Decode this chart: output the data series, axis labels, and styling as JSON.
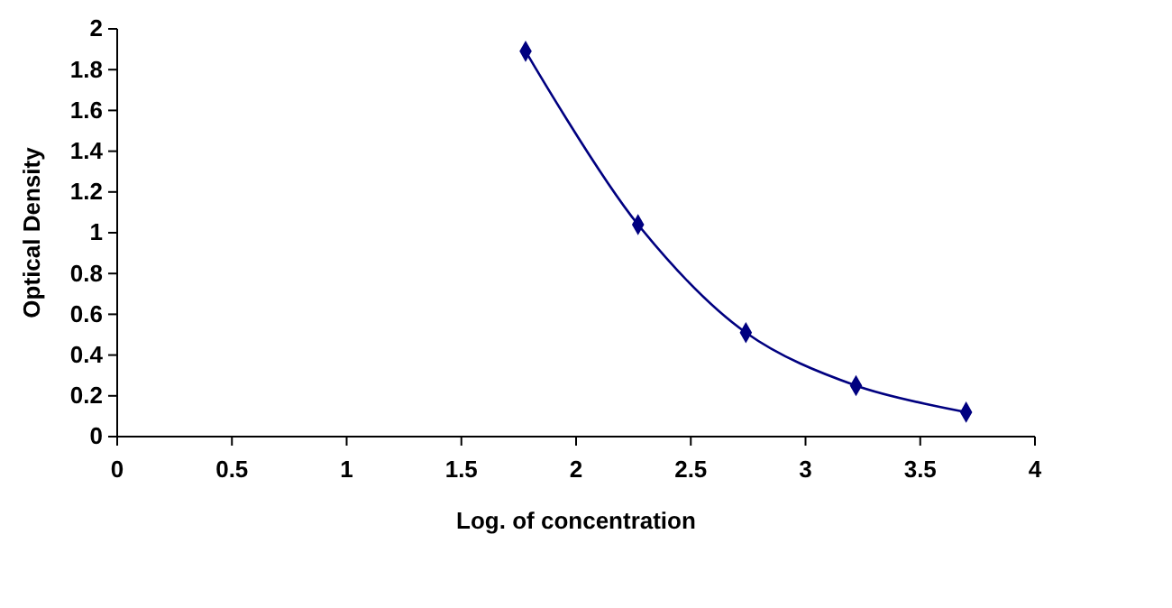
{
  "chart_data": {
    "type": "line",
    "xlabel": "Log. of concentration",
    "ylabel": "Optical Density",
    "x": [
      1.78,
      2.27,
      2.74,
      3.22,
      3.7
    ],
    "series": [
      {
        "color": "#000080",
        "values": [
          1.89,
          1.04,
          0.51,
          0.25,
          0.12
        ]
      }
    ],
    "xlim": [
      0,
      4
    ],
    "xticks": [
      0,
      0.5,
      1,
      1.5,
      2,
      2.5,
      3,
      3.5,
      4
    ],
    "ylim": [
      0,
      2
    ],
    "yticks": [
      0,
      0.2,
      0.4,
      0.6,
      0.8,
      1,
      1.2,
      1.4,
      1.6,
      1.8,
      2
    ],
    "marker": "diamond",
    "line_style": "solid"
  }
}
